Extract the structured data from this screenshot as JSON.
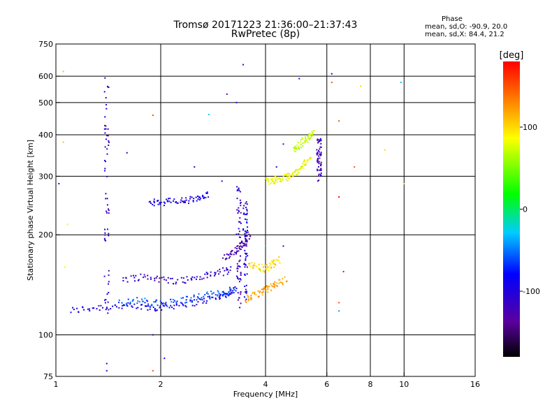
{
  "header": {
    "title": "Tromsø 20171223 21:36:00–21:37:43",
    "subtitle": "RwPretec (8p)",
    "phase_title": "Phase",
    "phase_line1": "mean, sd,O: -90.9, 20.0",
    "phase_line2": "mean, sd,X:  84.4, 21.2"
  },
  "colorbar": {
    "unit": "[deg]",
    "ticks": [
      {
        "value": 100,
        "label": "100"
      },
      {
        "value": 0,
        "label": "0"
      },
      {
        "value": -100,
        "label": "-100"
      }
    ],
    "range": [
      -180,
      180
    ]
  },
  "chart_data": {
    "type": "scatter",
    "xlabel": "Frequency [MHz]",
    "ylabel": "Stationary phase Virtual Height [km]",
    "xscale": "log",
    "yscale": "log",
    "xlim": [
      1,
      16
    ],
    "ylim": [
      75,
      750
    ],
    "grid": true,
    "xticks": [
      {
        "value": 1,
        "label": "1"
      },
      {
        "value": 2,
        "label": "2"
      },
      {
        "value": 4,
        "label": "4"
      },
      {
        "value": 6,
        "label": "6"
      },
      {
        "value": 8,
        "label": "8"
      },
      {
        "value": 10,
        "label": "10"
      },
      {
        "value": 16,
        "label": "16"
      }
    ],
    "xgrid": [
      2,
      4,
      6,
      8,
      10
    ],
    "yticks": [
      {
        "value": 75,
        "label": "75"
      },
      {
        "value": 100,
        "label": "100"
      },
      {
        "value": 200,
        "label": "200"
      },
      {
        "value": 300,
        "label": "300"
      },
      {
        "value": 400,
        "label": "400"
      },
      {
        "value": 500,
        "label": "500"
      },
      {
        "value": 600,
        "label": "600"
      },
      {
        "value": 750,
        "label": "750"
      }
    ],
    "ygrid": [
      100,
      200,
      300,
      400,
      500,
      600
    ],
    "traces": [
      {
        "f": [
          1.1,
          1.3,
          1.55,
          1.8,
          2.0,
          2.3,
          2.6,
          2.9,
          3.1,
          3.3
        ],
        "h": [
          118,
          121,
          122,
          121,
          121,
          124,
          126,
          130,
          133,
          137
        ],
        "phase": -95
      },
      {
        "f": [
          1.5,
          1.7,
          1.9,
          2.1,
          2.4,
          2.7,
          3.0,
          3.3
        ],
        "h": [
          125,
          127,
          124,
          125,
          128,
          131,
          134,
          137
        ],
        "phase": -60
      },
      {
        "f": [
          1.55,
          1.8,
          2.05,
          2.35,
          2.65,
          2.95,
          3.2
        ],
        "h": [
          147,
          150,
          146,
          146,
          150,
          154,
          157
        ],
        "phase": -110
      },
      {
        "f": [
          1.85,
          2.0,
          2.2,
          2.4,
          2.6,
          2.75
        ],
        "h": [
          250,
          251,
          252,
          254,
          257,
          263
        ],
        "phase": -95
      },
      {
        "f": [
          3.05,
          3.2,
          3.35,
          3.5,
          3.6
        ],
        "h": [
          170,
          177,
          183,
          190,
          200
        ],
        "phase": -130
      },
      {
        "f": [
          3.5,
          3.7,
          3.9,
          4.1,
          4.3,
          4.6
        ],
        "h": [
          128,
          131,
          135,
          138,
          142,
          147
        ],
        "phase": 120
      },
      {
        "f": [
          3.6,
          3.8,
          4.0,
          4.2,
          4.4
        ],
        "h": [
          165,
          160,
          158,
          163,
          170
        ],
        "phase": 100
      },
      {
        "f": [
          4.0,
          4.2,
          4.4,
          4.6,
          4.8,
          5.0,
          5.2,
          5.4
        ],
        "h": [
          289,
          292,
          293,
          298,
          305,
          315,
          328,
          340
        ],
        "phase": 85
      },
      {
        "f": [
          4.8,
          5.0,
          5.2,
          5.35,
          5.5
        ],
        "h": [
          360,
          373,
          385,
          395,
          405
        ],
        "phase": 70
      }
    ],
    "columns": [
      {
        "f": 1.4,
        "h_min": 110,
        "h_max": 605,
        "phase": -110
      },
      {
        "f": 3.35,
        "h_min": 120,
        "h_max": 280,
        "phase": -115
      },
      {
        "f": 3.5,
        "h_min": 125,
        "h_max": 255,
        "phase": -95
      },
      {
        "f": 5.7,
        "h_min": 290,
        "h_max": 390,
        "phase": -120
      }
    ],
    "scattered_points": [
      {
        "f": 1.05,
        "h": 620,
        "phase": 110
      },
      {
        "f": 1.05,
        "h": 380,
        "phase": 110
      },
      {
        "f": 1.02,
        "h": 285,
        "phase": -100
      },
      {
        "f": 1.08,
        "h": 215,
        "phase": 80
      },
      {
        "f": 1.06,
        "h": 160,
        "phase": 80
      },
      {
        "f": 1.4,
        "h": 82,
        "phase": -110
      },
      {
        "f": 1.4,
        "h": 78,
        "phase": -110
      },
      {
        "f": 1.6,
        "h": 353,
        "phase": -110
      },
      {
        "f": 1.9,
        "h": 458,
        "phase": 150
      },
      {
        "f": 1.9,
        "h": 100,
        "phase": -120
      },
      {
        "f": 1.9,
        "h": 78,
        "phase": 150
      },
      {
        "f": 2.05,
        "h": 85,
        "phase": -80
      },
      {
        "f": 2.75,
        "h": 460,
        "phase": -30
      },
      {
        "f": 3.1,
        "h": 530,
        "phase": -135
      },
      {
        "f": 3.3,
        "h": 500,
        "phase": -100
      },
      {
        "f": 3.45,
        "h": 650,
        "phase": -110
      },
      {
        "f": 3.0,
        "h": 290,
        "phase": -110
      },
      {
        "f": 5.0,
        "h": 590,
        "phase": -100
      },
      {
        "f": 6.2,
        "h": 610,
        "phase": -100
      },
      {
        "f": 6.2,
        "h": 575,
        "phase": 150
      },
      {
        "f": 7.5,
        "h": 560,
        "phase": 100
      },
      {
        "f": 6.5,
        "h": 440,
        "phase": 150
      },
      {
        "f": 6.5,
        "h": 260,
        "phase": 180
      },
      {
        "f": 6.7,
        "h": 155,
        "phase": 180
      },
      {
        "f": 6.5,
        "h": 125,
        "phase": 150
      },
      {
        "f": 6.5,
        "h": 118,
        "phase": -40
      },
      {
        "f": 9.8,
        "h": 575,
        "phase": -30
      },
      {
        "f": 7.2,
        "h": 320,
        "phase": 150
      },
      {
        "f": 8.8,
        "h": 360,
        "phase": 100
      },
      {
        "f": 10.0,
        "h": 285,
        "phase": 100
      },
      {
        "f": 4.5,
        "h": 375,
        "phase": -120
      },
      {
        "f": 4.3,
        "h": 320,
        "phase": -100
      },
      {
        "f": 2.5,
        "h": 320,
        "phase": -110
      },
      {
        "f": 4.0,
        "h": 185,
        "phase": -30
      },
      {
        "f": 4.5,
        "h": 185,
        "phase": -100
      }
    ]
  }
}
